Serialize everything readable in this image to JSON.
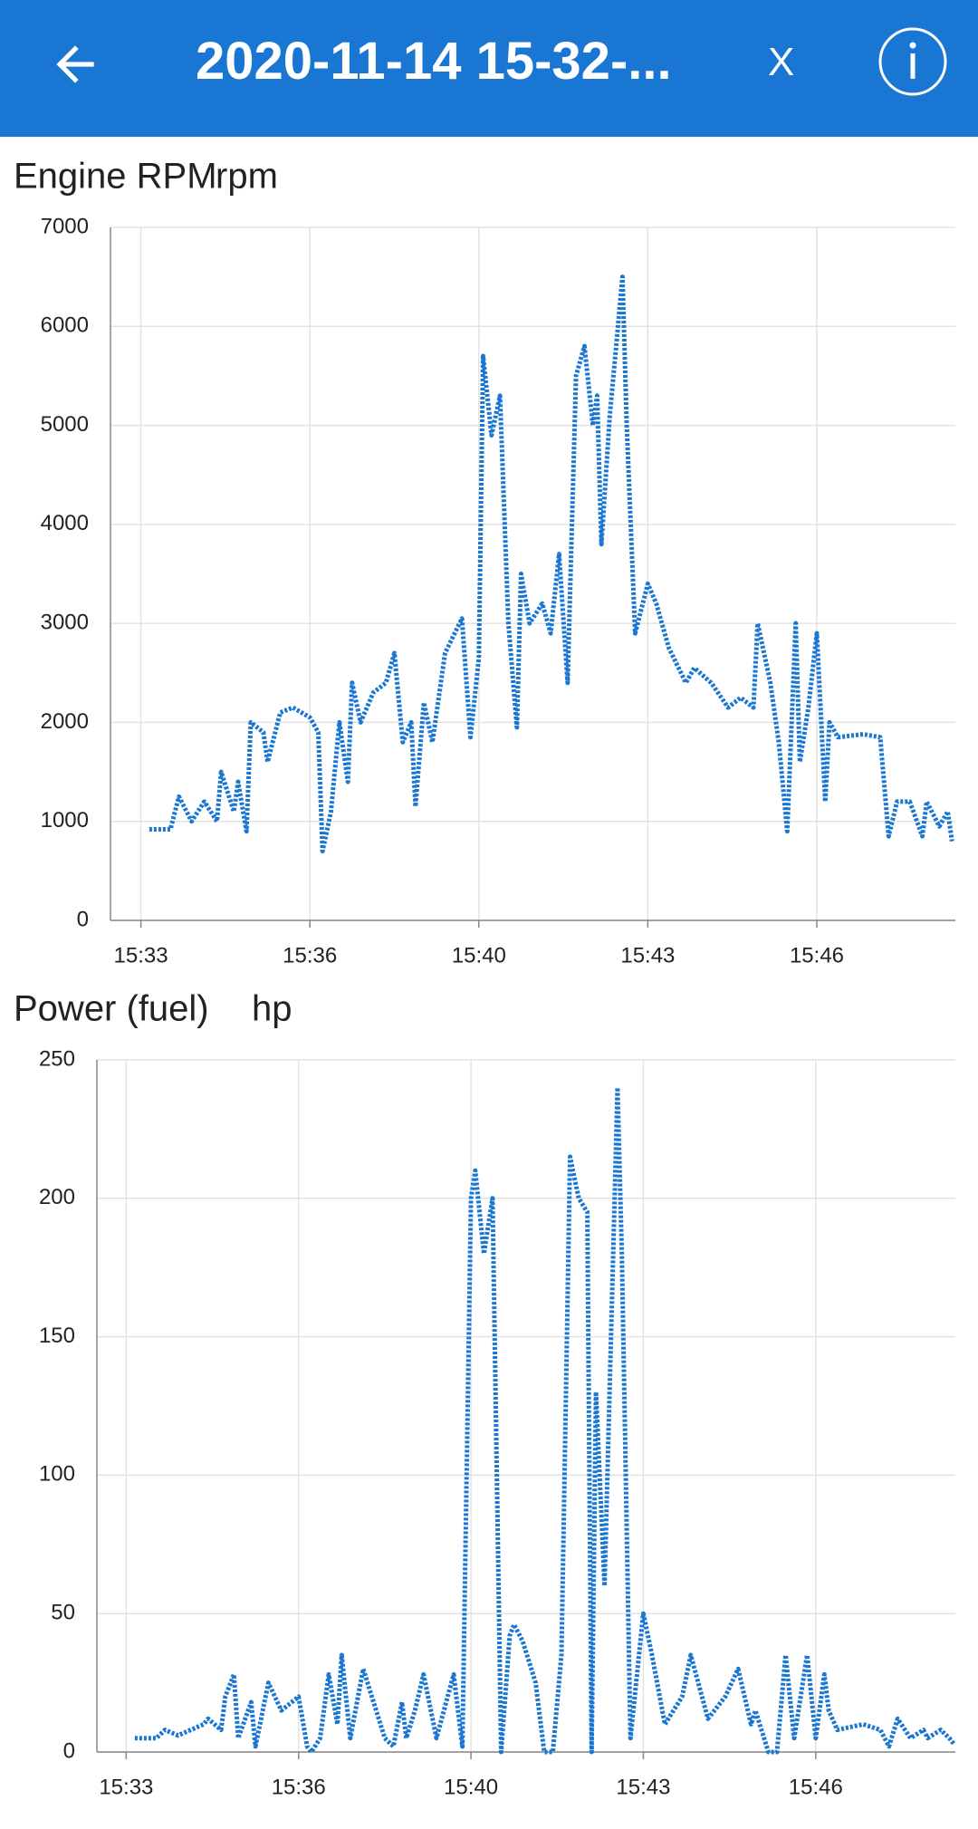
{
  "header": {
    "title": "2020-11-14 15-32-...",
    "close": "X"
  },
  "chart_data": [
    {
      "type": "line",
      "title": "Engine RPM",
      "unit": "rpm",
      "color": "#1976d2",
      "grid": true,
      "x": [
        "15:33:30",
        "15:33:55",
        "15:34:05",
        "15:34:20",
        "15:34:35",
        "15:34:50",
        "15:34:55",
        "15:35:10",
        "15:35:15",
        "15:35:25",
        "15:35:30",
        "15:35:45",
        "15:35:50",
        "15:36:05",
        "15:36:20",
        "15:36:40",
        "15:36:50",
        "15:36:55",
        "15:37:05",
        "15:37:15",
        "15:37:25",
        "15:37:30",
        "15:37:40",
        "15:37:55",
        "15:38:10",
        "15:38:20",
        "15:38:30",
        "15:38:40",
        "15:38:45",
        "15:38:55",
        "15:39:05",
        "15:39:20",
        "15:39:40",
        "15:39:50",
        "15:40:00",
        "15:40:05",
        "15:40:15",
        "15:40:25",
        "15:40:35",
        "15:40:45",
        "15:40:50",
        "15:41:00",
        "15:41:15",
        "15:41:25",
        "15:41:35",
        "15:41:45",
        "15:41:55",
        "15:42:05",
        "15:42:15",
        "15:42:20",
        "15:42:25",
        "15:42:35",
        "15:42:50",
        "15:42:55",
        "15:43:05",
        "15:43:20",
        "15:43:30",
        "15:43:45",
        "15:44:05",
        "15:44:15",
        "15:44:35",
        "15:44:55",
        "15:45:10",
        "15:45:25",
        "15:45:30",
        "15:45:45",
        "15:45:55",
        "15:46:05",
        "15:46:15",
        "15:46:20",
        "15:46:30",
        "15:46:40",
        "15:46:50",
        "15:46:55",
        "15:47:05",
        "15:47:35",
        "15:47:55",
        "15:48:05",
        "15:48:15",
        "15:48:30",
        "15:48:45",
        "15:48:50",
        "15:49:05",
        "15:49:15",
        "15:49:20"
      ],
      "values": [
        920,
        920,
        1250,
        1000,
        1200,
        1000,
        1500,
        1100,
        1400,
        900,
        2000,
        1900,
        1600,
        2100,
        2150,
        2050,
        1900,
        700,
        1100,
        2000,
        1400,
        2400,
        2000,
        2300,
        2400,
        2700,
        1800,
        2000,
        1150,
        2200,
        1800,
        2700,
        3050,
        1850,
        2650,
        5700,
        4900,
        5300,
        3000,
        1950,
        3500,
        3000,
        3200,
        2900,
        3700,
        2400,
        5500,
        5800,
        5000,
        5300,
        3800,
        5100,
        6500,
        5000,
        2900,
        3400,
        3200,
        2750,
        2400,
        2550,
        2400,
        2150,
        2250,
        2150,
        3000,
        2400,
        1800,
        900,
        3000,
        1600,
        2150,
        2900,
        1200,
        2000,
        1850,
        1880,
        1850,
        850,
        1200,
        1200,
        850,
        1200,
        950,
        1100,
        800
      ],
      "xlim": [
        "15:32:44",
        "15:49:24"
      ],
      "xticks": [
        {
          "value": "15:33:20",
          "label": "15:33"
        },
        {
          "value": "15:36:40",
          "label": "15:36"
        },
        {
          "value": "15:40:00",
          "label": "15:40"
        },
        {
          "value": "15:43:20",
          "label": "15:43"
        },
        {
          "value": "15:46:40",
          "label": "15:46"
        }
      ],
      "ylim": [
        0,
        7000
      ],
      "yticks": [
        0,
        1000,
        2000,
        3000,
        4000,
        5000,
        6000,
        7000
      ]
    },
    {
      "type": "line",
      "title": "Power (fuel)",
      "unit": "hp",
      "color": "#1976d2",
      "grid": true,
      "x": [
        "15:33:30",
        "15:33:55",
        "15:34:05",
        "15:34:20",
        "15:34:35",
        "15:34:50",
        "15:34:55",
        "15:35:10",
        "15:35:15",
        "15:35:25",
        "15:35:30",
        "15:35:45",
        "15:35:50",
        "15:36:05",
        "15:36:20",
        "15:36:40",
        "15:36:50",
        "15:36:55",
        "15:37:05",
        "15:37:15",
        "15:37:25",
        "15:37:30",
        "15:37:40",
        "15:37:55",
        "15:38:10",
        "15:38:20",
        "15:38:30",
        "15:38:40",
        "15:38:45",
        "15:38:55",
        "15:39:05",
        "15:39:20",
        "15:39:40",
        "15:39:50",
        "15:40:00",
        "15:40:05",
        "15:40:15",
        "15:40:25",
        "15:40:35",
        "15:40:45",
        "15:40:50",
        "15:41:00",
        "15:41:15",
        "15:41:25",
        "15:41:35",
        "15:41:45",
        "15:41:55",
        "15:42:05",
        "15:42:15",
        "15:42:20",
        "15:42:25",
        "15:42:35",
        "15:42:50",
        "15:42:55",
        "15:43:05",
        "15:43:20",
        "15:43:30",
        "15:43:45",
        "15:44:05",
        "15:44:15",
        "15:44:35",
        "15:44:55",
        "15:45:10",
        "15:45:25",
        "15:45:30",
        "15:45:45",
        "15:45:55",
        "15:46:05",
        "15:46:15",
        "15:46:20",
        "15:46:30",
        "15:46:40",
        "15:46:50",
        "15:46:55",
        "15:47:05",
        "15:47:35",
        "15:47:55",
        "15:48:05",
        "15:48:15",
        "15:48:30",
        "15:48:45",
        "15:48:50",
        "15:49:05",
        "15:49:15",
        "15:49:20"
      ],
      "values": [
        5,
        5,
        8,
        6,
        8,
        10,
        12,
        8,
        20,
        28,
        5,
        18,
        2,
        25,
        15,
        20,
        2,
        0,
        5,
        28,
        10,
        35,
        5,
        30,
        15,
        5,
        2,
        18,
        5,
        15,
        28,
        5,
        28,
        2,
        200,
        210,
        180,
        200,
        0,
        42,
        46,
        40,
        25,
        0,
        0,
        35,
        215,
        200,
        195,
        0,
        130,
        60,
        240,
        180,
        5,
        50,
        35,
        10,
        20,
        35,
        12,
        20,
        30,
        10,
        15,
        0,
        0,
        35,
        5,
        15,
        35,
        5,
        28,
        15,
        8,
        10,
        8,
        2,
        12,
        5,
        8,
        5,
        8,
        5,
        3
      ],
      "xlim": [
        "15:32:46",
        "15:49:22"
      ],
      "xticks": [
        {
          "value": "15:33:20",
          "label": "15:33"
        },
        {
          "value": "15:36:40",
          "label": "15:36"
        },
        {
          "value": "15:40:00",
          "label": "15:40"
        },
        {
          "value": "15:43:20",
          "label": "15:43"
        },
        {
          "value": "15:46:40",
          "label": "15:46"
        }
      ],
      "ylim": [
        0,
        250
      ],
      "yticks": [
        0,
        50,
        100,
        150,
        200,
        250
      ]
    }
  ]
}
